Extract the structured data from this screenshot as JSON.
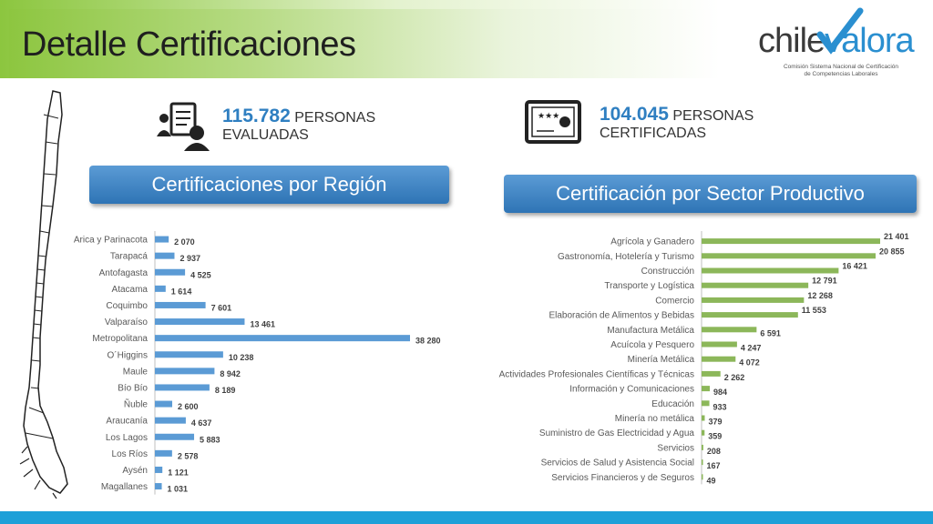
{
  "header": {
    "title": "Detalle Certificaciones"
  },
  "logo": {
    "word_part1": "chile",
    "word_part2": "valora",
    "subtitle_line1": "Comisión Sistema Nacional de Certificación",
    "subtitle_line2": "de Competencias Laborales"
  },
  "kpis": {
    "evaluated": {
      "number": "115.782",
      "unit": "PERSONAS",
      "label": "EVALUADAS"
    },
    "certified": {
      "number": "104.045",
      "unit": "PERSONAS",
      "label": "CERTIFICADAS"
    }
  },
  "sections": {
    "region_title": "Certificaciones por Región",
    "sector_title": "Certificación por Sector Productivo"
  },
  "colors": {
    "region_bar": "#5b9bd5",
    "sector_bar": "#8cb75a",
    "header_green": "#8dc640",
    "accent_blue": "#2e74b5"
  },
  "icons": {
    "evaluated": "person-checklist-icon",
    "certified": "certificate-icon",
    "map": "chile-map-icon"
  },
  "chart_data": [
    {
      "type": "bar",
      "orientation": "horizontal",
      "title": "Certificaciones por Región",
      "categories": [
        "Arica y Parinacota",
        "Tarapacá",
        "Antofagasta",
        "Atacama",
        "Coquimbo",
        "Valparaíso",
        "Metropolitana",
        "O´Higgins",
        "Maule",
        "Bío Bío",
        "Ñuble",
        "Araucanía",
        "Los Lagos",
        "Los Ríos",
        "Aysén",
        "Magallanes"
      ],
      "values": [
        2070,
        2937,
        4525,
        1614,
        7601,
        13461,
        38280,
        10238,
        8942,
        8189,
        2600,
        4637,
        5883,
        2578,
        1121,
        1031
      ],
      "labels": [
        "2 070",
        "2 937",
        "4 525",
        "1 614",
        "7 601",
        "13 461",
        "38 280",
        "10 238",
        "8 942",
        "8 189",
        "2 600",
        "4 637",
        "5 883",
        "2 578",
        "1 121",
        "1 031"
      ],
      "xlim": [
        0,
        38280
      ],
      "grid": false
    },
    {
      "type": "bar",
      "orientation": "horizontal",
      "title": "Certificación por Sector Productivo",
      "categories": [
        "Agrícola y Ganadero",
        "Gastronomía, Hotelería y Turismo",
        "Construcción",
        "Transporte y Logística",
        "Comercio",
        "Elaboración de Alimentos y Bebidas",
        "Manufactura Metálica",
        "Acuícola y Pesquero",
        "Minería Metálica",
        "Actividades Profesionales Científicas y Técnicas",
        "Información y Comunicaciones",
        "Educación",
        "Minería no metálica",
        "Suministro de Gas Electricidad y Agua",
        "Servicios",
        "Servicios de Salud y Asistencia Social",
        "Servicios Financieros y de Seguros"
      ],
      "values": [
        21401,
        20855,
        16421,
        12791,
        12268,
        11553,
        6591,
        4247,
        4072,
        2262,
        984,
        933,
        379,
        359,
        208,
        167,
        49
      ],
      "labels": [
        "21 401",
        "20 855",
        "16 421",
        "12 791",
        "12 268",
        "11 553",
        "6 591",
        "4 247",
        "4 072",
        "2 262",
        "984",
        "933",
        "379",
        "359",
        "208",
        "167",
        "49"
      ],
      "xlim": [
        0,
        21401
      ],
      "grid": false
    }
  ]
}
